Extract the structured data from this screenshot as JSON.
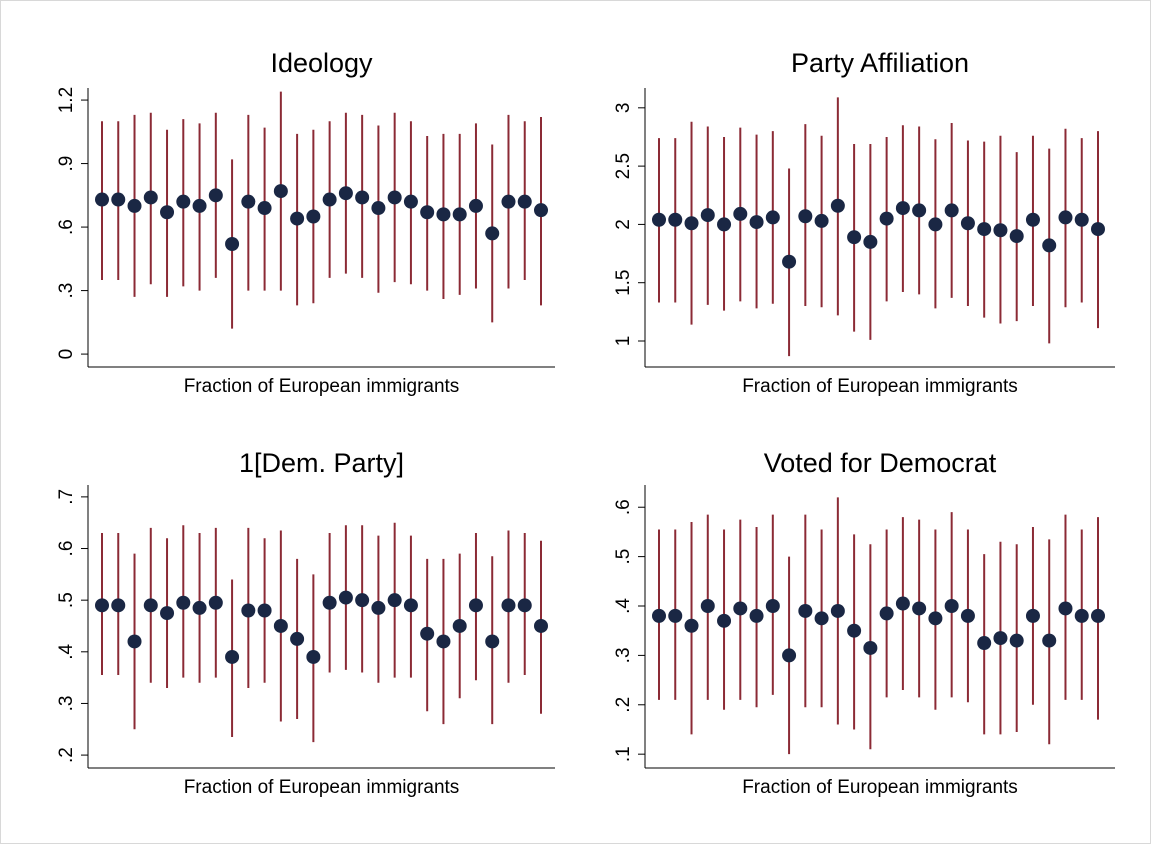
{
  "chart_data": [
    {
      "type": "errorbar",
      "title": "Ideology",
      "xlabel": "Fraction of European immigrants",
      "values": [
        0.73,
        0.73,
        0.7,
        0.74,
        0.67,
        0.72,
        0.7,
        0.75,
        0.52,
        0.72,
        0.69,
        0.77,
        0.64,
        0.65,
        0.73,
        0.76,
        0.74,
        0.69,
        0.74,
        0.72,
        0.67,
        0.66,
        0.66,
        0.7,
        0.57,
        0.72,
        0.72,
        0.68
      ],
      "lower": [
        0.35,
        0.35,
        0.27,
        0.33,
        0.27,
        0.32,
        0.3,
        0.36,
        0.12,
        0.3,
        0.3,
        0.3,
        0.23,
        0.24,
        0.36,
        0.38,
        0.36,
        0.29,
        0.34,
        0.33,
        0.3,
        0.26,
        0.28,
        0.31,
        0.15,
        0.31,
        0.35,
        0.23
      ],
      "upper": [
        1.1,
        1.1,
        1.13,
        1.14,
        1.06,
        1.11,
        1.09,
        1.14,
        0.92,
        1.13,
        1.07,
        1.24,
        1.04,
        1.06,
        1.1,
        1.14,
        1.13,
        1.08,
        1.14,
        1.1,
        1.03,
        1.04,
        1.04,
        1.09,
        0.99,
        1.13,
        1.1,
        1.12
      ],
      "ylim": [
        -0.061,
        1.257
      ],
      "yticks": [
        0,
        {
          "value": 0.3,
          "label": ".3"
        },
        {
          "value": 0.6,
          "label": ".6"
        },
        {
          "value": 0.9,
          "label": ".9"
        },
        1.2
      ],
      "color": "#1a2744",
      "bar_color": "#8b2a35"
    },
    {
      "type": "errorbar",
      "title": "Party Affiliation",
      "xlabel": "Fraction of European immigrants",
      "values": [
        2.04,
        2.04,
        2.01,
        2.08,
        2.0,
        2.09,
        2.02,
        2.06,
        1.68,
        2.07,
        2.03,
        2.16,
        1.89,
        1.85,
        2.05,
        2.14,
        2.12,
        2.0,
        2.12,
        2.01,
        1.96,
        1.95,
        1.9,
        2.04,
        1.82,
        2.06,
        2.04,
        1.96
      ],
      "lower": [
        1.33,
        1.33,
        1.14,
        1.31,
        1.26,
        1.34,
        1.28,
        1.32,
        0.87,
        1.3,
        1.29,
        1.22,
        1.08,
        1.01,
        1.34,
        1.42,
        1.4,
        1.28,
        1.37,
        1.3,
        1.2,
        1.15,
        1.17,
        1.3,
        0.98,
        1.29,
        1.33,
        1.11
      ],
      "upper": [
        2.74,
        2.74,
        2.88,
        2.84,
        2.75,
        2.83,
        2.77,
        2.8,
        2.48,
        2.86,
        2.76,
        3.09,
        2.69,
        2.69,
        2.75,
        2.85,
        2.84,
        2.73,
        2.87,
        2.72,
        2.71,
        2.76,
        2.62,
        2.76,
        2.65,
        2.82,
        2.74,
        2.8
      ],
      "ylim": [
        0.777,
        3.17
      ],
      "yticks": [
        1,
        1.5,
        2,
        2.5,
        3
      ],
      "color": "#1a2744",
      "bar_color": "#8b2a35"
    },
    {
      "type": "errorbar",
      "title": "1[Dem. Party]",
      "xlabel": "Fraction of European immigrants",
      "values": [
        0.49,
        0.49,
        0.42,
        0.49,
        0.475,
        0.495,
        0.485,
        0.495,
        0.39,
        0.48,
        0.48,
        0.45,
        0.425,
        0.39,
        0.495,
        0.505,
        0.5,
        0.485,
        0.5,
        0.49,
        0.435,
        0.42,
        0.45,
        0.49,
        0.42,
        0.49,
        0.49,
        0.45
      ],
      "lower": [
        0.355,
        0.355,
        0.25,
        0.34,
        0.33,
        0.35,
        0.34,
        0.35,
        0.235,
        0.33,
        0.34,
        0.265,
        0.27,
        0.225,
        0.36,
        0.365,
        0.36,
        0.34,
        0.35,
        0.35,
        0.285,
        0.26,
        0.31,
        0.345,
        0.26,
        0.34,
        0.355,
        0.28
      ],
      "upper": [
        0.63,
        0.63,
        0.59,
        0.64,
        0.62,
        0.645,
        0.63,
        0.64,
        0.54,
        0.64,
        0.62,
        0.635,
        0.58,
        0.55,
        0.63,
        0.645,
        0.645,
        0.625,
        0.65,
        0.625,
        0.58,
        0.58,
        0.59,
        0.63,
        0.585,
        0.635,
        0.63,
        0.615
      ],
      "ylim": [
        0.175,
        0.723
      ],
      "yticks": [
        {
          "value": 0.2,
          "label": ".2"
        },
        {
          "value": 0.3,
          "label": ".3"
        },
        {
          "value": 0.4,
          "label": ".4"
        },
        {
          "value": 0.5,
          "label": ".5"
        },
        {
          "value": 0.6,
          "label": ".6"
        },
        {
          "value": 0.7,
          "label": ".7"
        }
      ],
      "color": "#1a2744",
      "bar_color": "#8b2a35"
    },
    {
      "type": "errorbar",
      "title": "Voted for Democrat",
      "xlabel": "Fraction of European immigrants",
      "values": [
        0.38,
        0.38,
        0.36,
        0.4,
        0.37,
        0.395,
        0.38,
        0.4,
        0.3,
        0.39,
        0.375,
        0.39,
        0.35,
        0.315,
        0.385,
        0.405,
        0.395,
        0.375,
        0.4,
        0.38,
        0.325,
        0.335,
        0.33,
        0.38,
        0.33,
        0.395,
        0.38,
        0.38
      ],
      "lower": [
        0.21,
        0.21,
        0.14,
        0.21,
        0.19,
        0.21,
        0.195,
        0.22,
        0.1,
        0.195,
        0.195,
        0.16,
        0.15,
        0.11,
        0.215,
        0.23,
        0.215,
        0.19,
        0.215,
        0.205,
        0.14,
        0.14,
        0.145,
        0.2,
        0.12,
        0.21,
        0.21,
        0.17
      ],
      "upper": [
        0.555,
        0.555,
        0.57,
        0.585,
        0.555,
        0.575,
        0.56,
        0.585,
        0.5,
        0.585,
        0.555,
        0.62,
        0.545,
        0.525,
        0.555,
        0.58,
        0.575,
        0.555,
        0.59,
        0.555,
        0.505,
        0.53,
        0.525,
        0.56,
        0.535,
        0.585,
        0.555,
        0.58
      ],
      "ylim": [
        0.072,
        0.645
      ],
      "yticks": [
        {
          "value": 0.1,
          "label": ".1"
        },
        {
          "value": 0.2,
          "label": ".2"
        },
        {
          "value": 0.3,
          "label": ".3"
        },
        {
          "value": 0.4,
          "label": ".4"
        },
        {
          "value": 0.5,
          "label": ".5"
        },
        {
          "value": 0.6,
          "label": ".6"
        }
      ],
      "color": "#1a2744",
      "bar_color": "#8b2a35"
    }
  ]
}
